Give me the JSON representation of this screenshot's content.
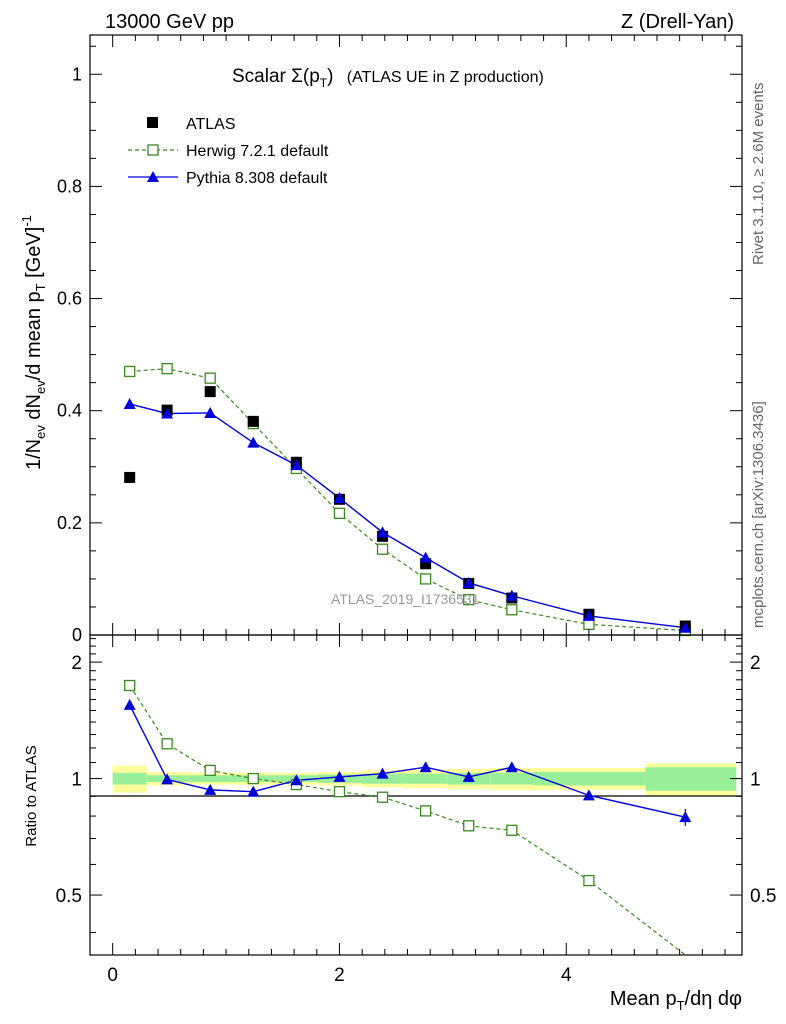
{
  "header": {
    "left": "13000 GeV pp",
    "right": "Z (Drell-Yan)"
  },
  "side_labels": {
    "rivet": "Rivet 3.1.10, ≥ 2.6M events",
    "mcplots": "mcplots.cern.ch [arXiv:1306.3436]"
  },
  "watermark": "ATLAS_2019_I1736531",
  "chart_data": [
    {
      "type": "scatter",
      "panel": "main",
      "title_main": "Scalar Σ(p",
      "title_sub": "T",
      "title_close": ")",
      "title_rest": "(ATLAS UE in Z production)",
      "ylabel": "1/N_ev dN_ev/d mean p_T [GeV]^-1",
      "xlim": [
        -0.2,
        5.55
      ],
      "ylim": [
        0,
        1.07
      ],
      "yticks": [
        0,
        0.2,
        0.4,
        0.6,
        0.8,
        1
      ],
      "ytick_labels": [
        "0",
        "0.2",
        "0.4",
        "0.6",
        "0.8",
        "1"
      ],
      "legend_position": "top-left",
      "x": [
        0.15,
        0.48,
        0.86,
        1.24,
        1.62,
        2.0,
        2.38,
        2.76,
        3.14,
        3.52,
        4.2,
        5.05
      ],
      "series": [
        {
          "name": "ATLAS",
          "marker": "filled-square",
          "color": "#000000",
          "values": [
            0.281,
            0.401,
            0.434,
            0.381,
            0.308,
            0.242,
            0.176,
            0.127,
            0.092,
            0.066,
            0.037,
            0.016
          ]
        },
        {
          "name": "Herwig 7.2.1 default",
          "marker": "open-square",
          "color": "#3a8a1e",
          "dashed": true,
          "values": [
            0.47,
            0.475,
            0.458,
            0.377,
            0.297,
            0.217,
            0.153,
            0.1,
            0.063,
            0.045,
            0.019,
            0.008
          ]
        },
        {
          "name": "Pythia 8.308 default",
          "marker": "filled-triangle",
          "color": "#0000dd",
          "values": [
            0.412,
            0.395,
            0.396,
            0.343,
            0.303,
            0.244,
            0.183,
            0.138,
            0.093,
            0.07,
            0.034,
            0.013
          ]
        }
      ]
    },
    {
      "type": "line",
      "panel": "ratio",
      "ylabel": "Ratio to ATLAS",
      "xlabel": "Mean p_T/dη dφ",
      "xlim": [
        -0.2,
        5.55
      ],
      "ylim": [
        0.35,
        2.35
      ],
      "yticks": [
        0.5,
        1,
        2
      ],
      "ytick_labels": [
        "0.5",
        "1",
        "2"
      ],
      "xticks": [
        0,
        2,
        4
      ],
      "xtick_labels": [
        "0",
        "2",
        "4"
      ],
      "x": [
        0.15,
        0.48,
        0.86,
        1.24,
        1.62,
        2.0,
        2.38,
        2.76,
        3.14,
        3.52,
        4.2,
        5.05
      ],
      "band_edges": [
        0.0,
        0.3,
        0.67,
        1.05,
        1.43,
        1.81,
        2.19,
        2.57,
        2.95,
        3.33,
        3.71,
        4.7,
        5.5
      ],
      "band_inner": [
        0.035,
        0.02,
        0.02,
        0.02,
        0.02,
        0.025,
        0.03,
        0.03,
        0.035,
        0.035,
        0.04,
        0.07
      ],
      "band_outer": [
        0.08,
        0.04,
        0.035,
        0.035,
        0.035,
        0.04,
        0.05,
        0.055,
        0.06,
        0.065,
        0.065,
        0.095
      ],
      "series": [
        {
          "name": "Herwig 7.2.1 default",
          "color": "#3a8a1e",
          "dashed": true,
          "values": [
            1.74,
            1.23,
            1.05,
            1.0,
            0.965,
            0.925,
            0.895,
            0.825,
            0.755,
            0.735,
            0.545,
            0.35
          ]
        },
        {
          "name": "Pythia 8.308 default",
          "color": "#0000dd",
          "values": [
            1.55,
            0.995,
            0.935,
            0.925,
            0.99,
            1.01,
            1.03,
            1.07,
            1.01,
            1.07,
            0.905,
            0.795
          ],
          "errors": [
            0.01,
            0.01,
            0.01,
            0.01,
            0.01,
            0.01,
            0.015,
            0.02,
            0.02,
            0.025,
            0.02,
            0.04
          ]
        }
      ]
    }
  ]
}
